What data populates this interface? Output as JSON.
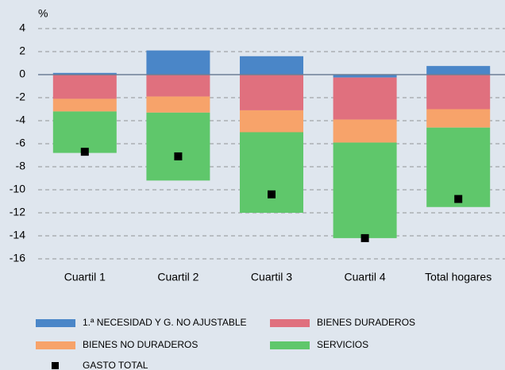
{
  "chart_data": {
    "type": "stacked-bar",
    "y_label": "%",
    "categories": [
      "Cuartil 1",
      "Cuartil 2",
      "Cuartil 3",
      "Cuartil 4",
      "Total hogares"
    ],
    "series": [
      {
        "name": "1.ª NECESIDAD Y G. NO AJUSTABLE",
        "color": "#4a86c8",
        "values": [
          0.15,
          2.1,
          1.6,
          -0.25,
          0.75
        ]
      },
      {
        "name": "BIENES DURADEROS",
        "color": "#e0707e",
        "values": [
          -2.1,
          -1.9,
          -3.1,
          -3.65,
          -3.0
        ]
      },
      {
        "name": "BIENES NO DURADEROS",
        "color": "#f7a36a",
        "values": [
          -1.1,
          -1.4,
          -1.9,
          -2.0,
          -1.6
        ]
      },
      {
        "name": "SERVICIOS",
        "color": "#5fc76b",
        "values": [
          -3.6,
          -5.9,
          -7.0,
          -8.3,
          -6.9
        ]
      }
    ],
    "markers": {
      "name": "GASTO TOTAL",
      "color": "#000000",
      "values": [
        -6.7,
        -7.1,
        -10.4,
        -14.2,
        -10.8
      ]
    },
    "ylim": [
      -16,
      4
    ],
    "yticks": [
      -16,
      -14,
      -12,
      -10,
      -8,
      -6,
      -4,
      -2,
      0,
      2,
      4
    ],
    "grid": true
  }
}
